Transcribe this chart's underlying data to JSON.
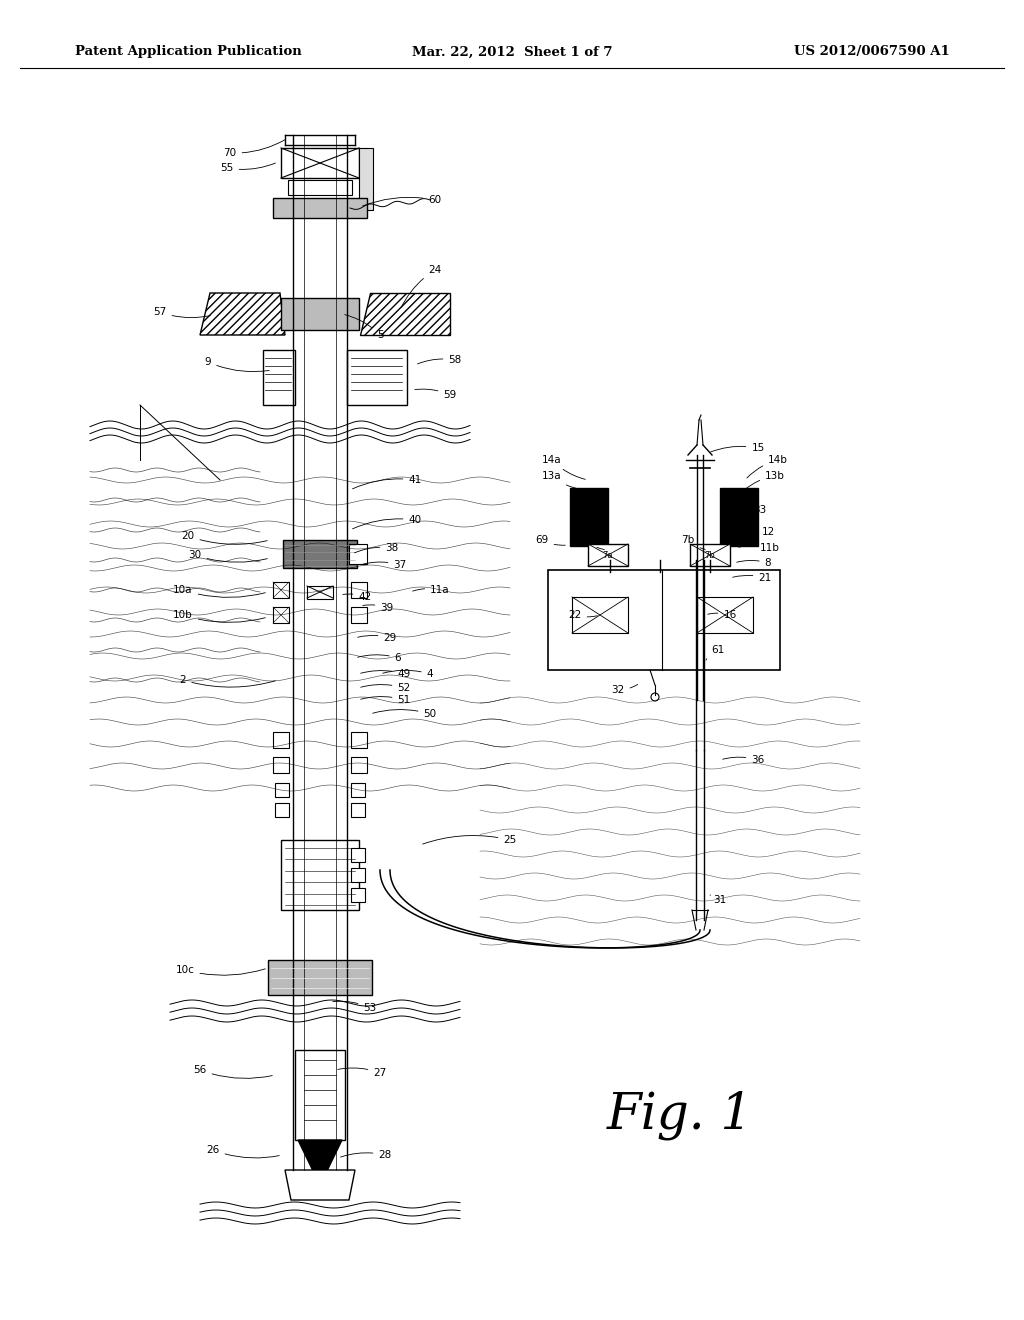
{
  "background_color": "#ffffff",
  "header_left": "Patent Application Publication",
  "header_mid": "Mar. 22, 2012  Sheet 1 of 7",
  "header_right": "US 2012/0067590 A1",
  "fig_label": "Fig. 1"
}
